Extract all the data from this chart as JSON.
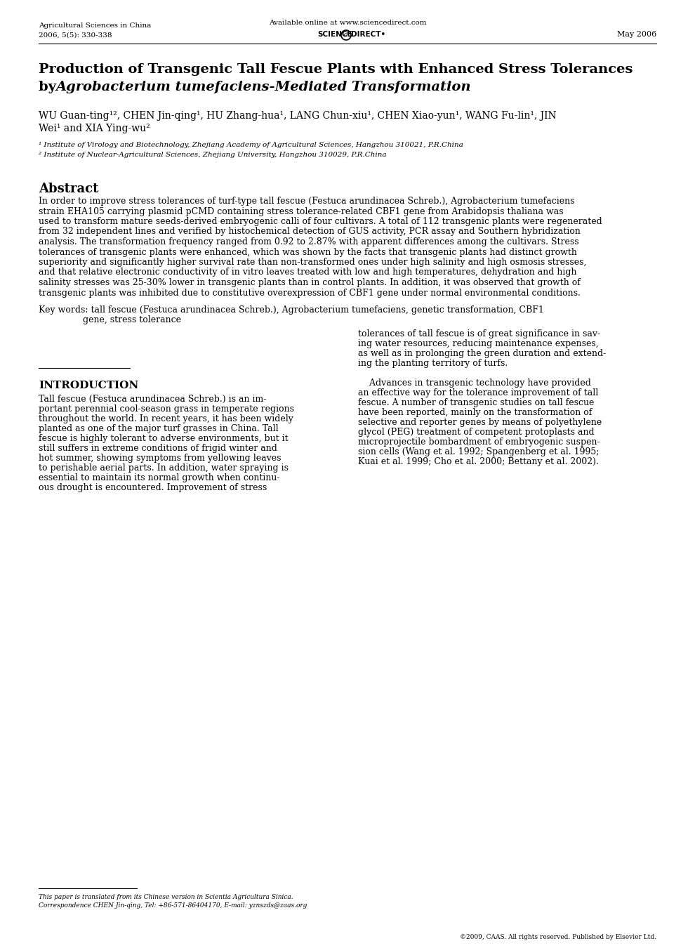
{
  "bg_color": "#ffffff",
  "header_journal": "Agricultural Sciences in China",
  "header_volume": "2006, 5(5): 330-338",
  "header_available": "Available online at www.sciencedirect.com",
  "header_date": "May 2006",
  "title_line1": "Production of Transgenic Tall Fescue Plants with Enhanced Stress Tolerances",
  "title_line2": "by Agrobacterium tumefaciens-Mediated Transformation",
  "authors_line1": "WU Guan-ting¹², CHEN Jin-qing¹, HU Zhang-hua¹, LANG Chun-xiu¹, CHEN Xiao-yun¹, WANG Fu-lin¹, JIN",
  "authors_line2": "Wei¹ and XIA Ying-wu²",
  "affil1": "¹ Institute of Virology and Biotechnology, Zhejiang Academy of Agricultural Sciences, Hangzhou 310021, P.R.China",
  "affil2": "² Institute of Nuclear-Agricultural Sciences, Zhejiang University, Hangzhou 310029, P.R.China",
  "abstract_title": "Abstract",
  "abstract_lines": [
    "In order to improve stress tolerances of turf-type tall fescue (Festuca arundinacea Schreb.), Agrobacterium tumefaciens",
    "strain EHA105 carrying plasmid pCMD containing stress tolerance-related CBF1 gene from Arabidopsis thaliana was",
    "used to transform mature seeds-derived embryogenic calli of four cultivars. A total of 112 transgenic plants were regenerated",
    "from 32 independent lines and verified by histochemical detection of GUS activity, PCR assay and Southern hybridization",
    "analysis. The transformation frequency ranged from 0.92 to 2.87% with apparent differences among the cultivars. Stress",
    "tolerances of transgenic plants were enhanced, which was shown by the facts that transgenic plants had distinct growth",
    "superiority and significantly higher survival rate than non-transformed ones under high salinity and high osmosis stresses,",
    "and that relative electronic conductivity of in vitro leaves treated with low and high temperatures, dehydration and high",
    "salinity stresses was 25-30% lower in transgenic plants than in control plants. In addition, it was observed that growth of",
    "transgenic plants was inhibited due to constitutive overexpression of CBF1 gene under normal environmental conditions."
  ],
  "keywords_line1": "Key words: tall fescue (Festuca arundinacea Schreb.), Agrobacterium tumefaciens, genetic transformation, CBF1",
  "keywords_line2": "gene, stress tolerance",
  "intro_title": "INTRODUCTION",
  "intro_left_lines": [
    "Tall fescue (Festuca arundinacea Schreb.) is an im-",
    "portant perennial cool-season grass in temperate regions",
    "throughout the world. In recent years, it has been widely",
    "planted as one of the major turf grasses in China. Tall",
    "fescue is highly tolerant to adverse environments, but it",
    "still suffers in extreme conditions of frigid winter and",
    "hot summer, showing symptoms from yellowing leaves",
    "to perishable aerial parts. In addition, water spraying is",
    "essential to maintain its normal growth when continu-",
    "ous drought is encountered. Improvement of stress"
  ],
  "intro_right_lines": [
    "tolerances of tall fescue is of great significance in sav-",
    "ing water resources, reducing maintenance expenses,",
    "as well as in prolonging the green duration and extend-",
    "ing the planting territory of turfs.",
    "",
    "    Advances in transgenic technology have provided",
    "an effective way for the tolerance improvement of tall",
    "fescue. A number of transgenic studies on tall fescue",
    "have been reported, mainly on the transformation of",
    "selective and reporter genes by means of polyethylene",
    "glycol (PEG) treatment of competent protoplasts and",
    "microprojectile bombardment of embryogenic suspen-",
    "sion cells (Wang et al. 1992; Spangenberg et al. 1995;",
    "Kuai et al. 1999; Cho et al. 2000; Bettany et al. 2002)."
  ],
  "footer_line1": "This paper is translated from its Chinese version in Scientia Agricultura Sinica.",
  "footer_line2": "Correspondence CHEN Jin-qing, Tel: +86-571-86404170, E-mail: yznszds@zaas.org",
  "footer_right": "©2009, CAAS. All rights reserved. Published by Elsevier Ltd."
}
